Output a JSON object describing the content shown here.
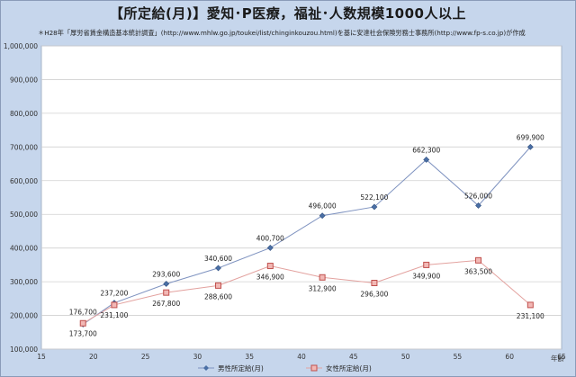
{
  "title": "【所定給(月)】愛知･P医療，福祉･人数規模1000人以上",
  "source_note": "＊H28年「厚労省賃金構造基本統計調査」(http://www.mhlw.go.jp/toukei/list/chinginkouzou.html)を基に安達社会保険労務士事務所(http://www.fp-s.co.jp)が作成",
  "chart_data": {
    "type": "line",
    "title": "【所定給(月)】愛知･P医療，福祉･人数規模1000人以上",
    "xlabel": "年齢",
    "ylabel": "",
    "xlim": [
      15,
      65
    ],
    "ylim": [
      100000,
      1000000
    ],
    "x_ticks": [
      "15",
      "20",
      "25",
      "30",
      "35",
      "40",
      "45",
      "50",
      "55",
      "60",
      "65"
    ],
    "y_ticks": [
      "100,000",
      "200,000",
      "300,000",
      "400,000",
      "500,000",
      "600,000",
      "700,000",
      "800,000",
      "900,000",
      "1,000,000"
    ],
    "grid": true,
    "legend_position": "bottom",
    "series": [
      {
        "name": "男性所定給(月)",
        "color": "#4a6fa5",
        "marker": "diamond",
        "x": [
          19,
          22,
          27,
          32,
          37,
          42,
          47,
          52,
          57,
          62
        ],
        "values": [
          173700,
          237200,
          293600,
          340600,
          400700,
          496000,
          522100,
          662300,
          526000,
          699900
        ],
        "labels": [
          "173,700",
          "237,200",
          "293,600",
          "340,600",
          "400,700",
          "496,000",
          "522,100",
          "662,300",
          "526,000",
          "699,900"
        ]
      },
      {
        "name": "女性所定給(月)",
        "color": "#c0504d",
        "marker": "square",
        "x": [
          19,
          22,
          27,
          32,
          37,
          42,
          47,
          52,
          57,
          62
        ],
        "values": [
          176700,
          231100,
          267800,
          288600,
          346900,
          312900,
          296300,
          349900,
          363500,
          231100
        ],
        "labels": [
          "176,700",
          "231,100",
          "267,800",
          "288,600",
          "346,900",
          "312,900",
          "296,300",
          "349,900",
          "363,500",
          "231,100"
        ]
      }
    ]
  }
}
